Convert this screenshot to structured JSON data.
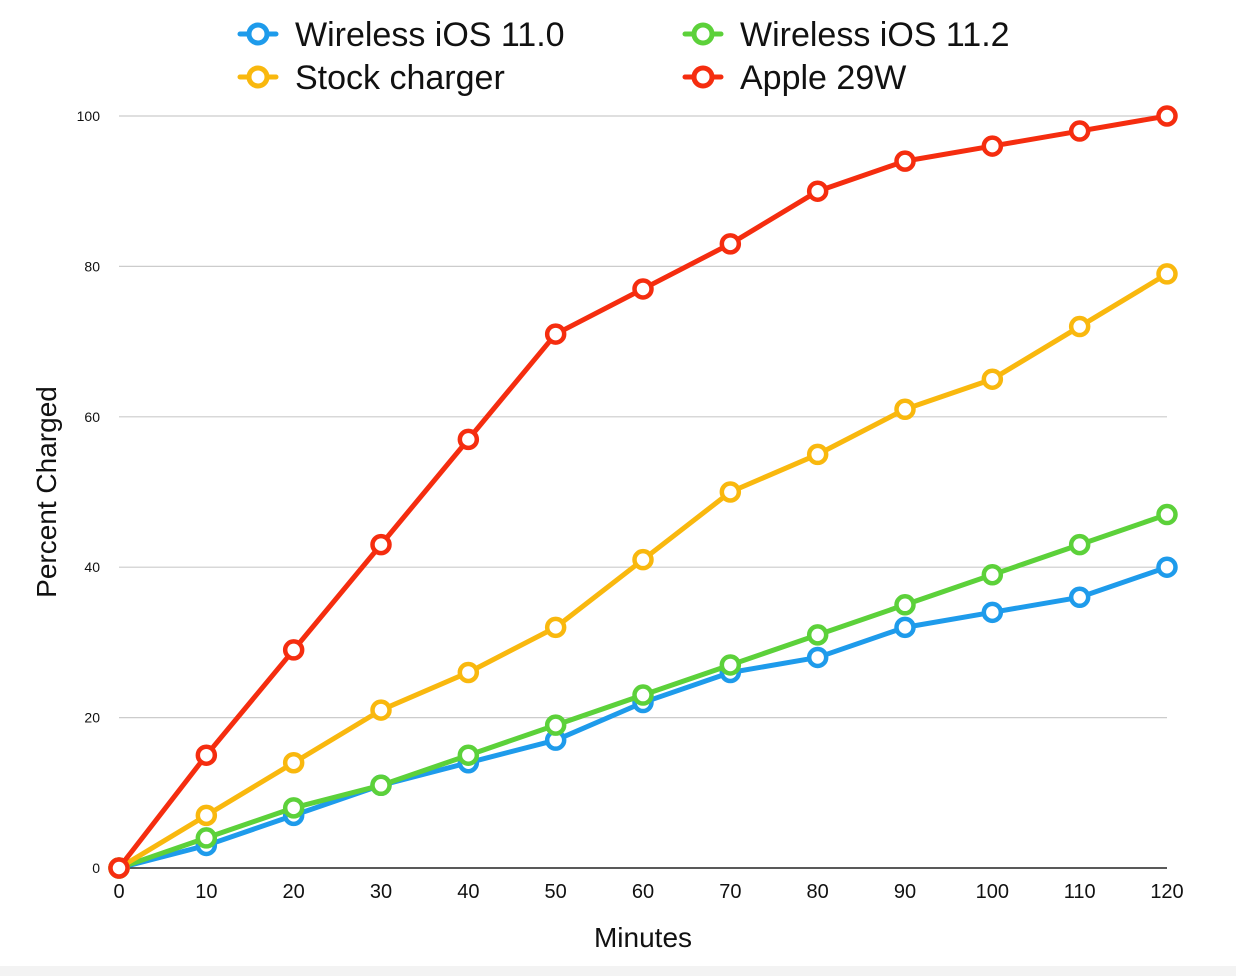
{
  "chart_data": {
    "type": "line",
    "title": "",
    "xlabel": "Minutes",
    "ylabel": "Percent Charged",
    "x": [
      0,
      10,
      20,
      30,
      40,
      50,
      60,
      70,
      80,
      90,
      100,
      110,
      120
    ],
    "xlim": [
      0,
      120
    ],
    "ylim": [
      0,
      100
    ],
    "y_ticks": [
      0,
      20,
      40,
      60,
      80,
      100
    ],
    "x_ticks": [
      0,
      10,
      20,
      30,
      40,
      50,
      60,
      70,
      80,
      90,
      100,
      110,
      120
    ],
    "grid": "horizontal",
    "legend_position": "top",
    "series": [
      {
        "name": "Wireless iOS 11.0",
        "color": "#1E9BEB",
        "values": [
          0,
          3,
          7,
          11,
          14,
          17,
          22,
          26,
          28,
          32,
          34,
          36,
          40
        ]
      },
      {
        "name": "Wireless iOS 11.2",
        "color": "#5CD13A",
        "values": [
          0,
          4,
          8,
          11,
          15,
          19,
          23,
          27,
          31,
          35,
          39,
          43,
          47
        ]
      },
      {
        "name": "Stock charger",
        "color": "#F9B80E",
        "values": [
          0,
          7,
          14,
          21,
          26,
          32,
          41,
          50,
          55,
          61,
          65,
          72,
          79
        ]
      },
      {
        "name": "Apple 29W",
        "color": "#F52D0F",
        "values": [
          0,
          15,
          29,
          43,
          57,
          71,
          77,
          83,
          90,
          94,
          96,
          98,
          100
        ]
      }
    ]
  }
}
